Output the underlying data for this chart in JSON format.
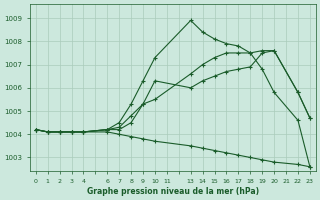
{
  "title": "Graphe pression niveau de la mer (hPa)",
  "bg_color": "#cce8dd",
  "grid_color": "#aaccbb",
  "line_color": "#1a5c2a",
  "ylim": [
    1002.4,
    1009.6
  ],
  "xlim": [
    -0.5,
    23.5
  ],
  "yticks": [
    1003,
    1004,
    1005,
    1006,
    1007,
    1008,
    1009
  ],
  "series1_x": [
    0,
    1,
    2,
    3,
    4,
    6,
    7,
    8,
    9,
    10,
    13,
    14,
    15,
    16,
    17,
    18,
    19,
    20,
    22,
    23
  ],
  "series1_y": [
    1004.2,
    1004.1,
    1004.1,
    1004.1,
    1004.1,
    1004.2,
    1004.5,
    1005.3,
    1006.3,
    1007.3,
    1008.9,
    1008.4,
    1008.1,
    1007.9,
    1007.8,
    1007.5,
    1006.8,
    1005.8,
    1004.6,
    1002.6
  ],
  "series2_x": [
    0,
    1,
    2,
    3,
    4,
    6,
    7,
    8,
    9,
    10,
    13,
    14,
    15,
    16,
    17,
    18,
    19,
    20,
    22,
    23
  ],
  "series2_y": [
    1004.2,
    1004.1,
    1004.1,
    1004.1,
    1004.1,
    1004.2,
    1004.3,
    1004.8,
    1005.3,
    1005.5,
    1006.6,
    1007.0,
    1007.3,
    1007.5,
    1007.5,
    1007.5,
    1007.6,
    1007.6,
    1005.8,
    1004.7
  ],
  "series3_x": [
    0,
    1,
    2,
    3,
    4,
    6,
    7,
    8,
    9,
    10,
    13,
    14,
    15,
    16,
    17,
    18,
    19,
    20,
    22,
    23
  ],
  "series3_y": [
    1004.2,
    1004.1,
    1004.1,
    1004.1,
    1004.1,
    1004.2,
    1004.2,
    1004.5,
    1005.3,
    1006.3,
    1006.0,
    1006.3,
    1006.5,
    1006.7,
    1006.8,
    1006.9,
    1007.5,
    1007.6,
    1005.8,
    1004.7
  ],
  "series4_x": [
    0,
    1,
    2,
    3,
    4,
    6,
    7,
    8,
    9,
    10,
    13,
    14,
    15,
    16,
    17,
    18,
    19,
    20,
    22,
    23
  ],
  "series4_y": [
    1004.2,
    1004.1,
    1004.1,
    1004.1,
    1004.1,
    1004.1,
    1004.0,
    1003.9,
    1003.8,
    1003.7,
    1003.5,
    1003.4,
    1003.3,
    1003.2,
    1003.1,
    1003.0,
    1002.9,
    1002.8,
    1002.7,
    1002.6
  ]
}
